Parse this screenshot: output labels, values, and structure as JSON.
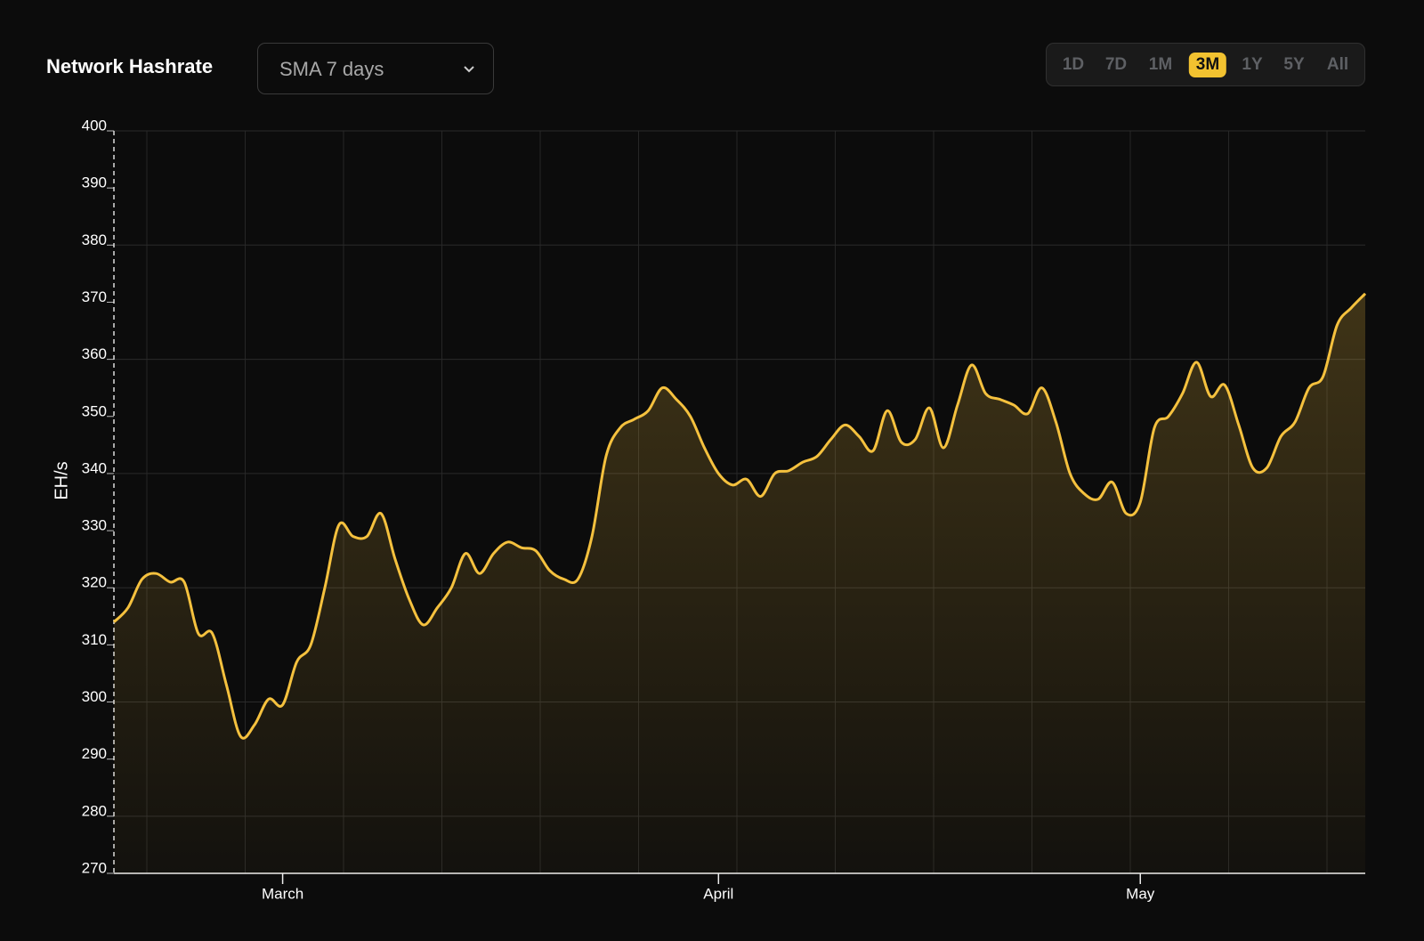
{
  "chart_data": {
    "type": "line",
    "title": "Network Hashrate",
    "y_label": "EH/s",
    "categories": [
      null,
      null,
      null,
      null,
      null,
      null,
      null,
      null,
      null,
      null,
      null,
      null,
      "March",
      null,
      null,
      null,
      null,
      null,
      null,
      null,
      null,
      null,
      null,
      null,
      null,
      null,
      null,
      null,
      null,
      null,
      null,
      null,
      null,
      null,
      null,
      null,
      null,
      null,
      null,
      null,
      null,
      null,
      null,
      "April",
      null,
      null,
      null,
      null,
      null,
      null,
      null,
      null,
      null,
      null,
      null,
      null,
      null,
      null,
      null,
      null,
      null,
      null,
      null,
      null,
      null,
      null,
      null,
      null,
      null,
      null,
      null,
      null,
      null,
      "May",
      null,
      null,
      null,
      null,
      null,
      null,
      null,
      null,
      null,
      null,
      null,
      null,
      null,
      null,
      null,
      null
    ],
    "values": [
      314,
      316.5,
      321.5,
      322.5,
      321,
      321,
      312,
      312,
      303,
      294,
      296,
      300.5,
      299.5,
      307,
      310,
      320,
      331,
      329,
      329,
      333,
      325,
      318,
      313.5,
      316.5,
      320,
      326,
      322.5,
      326,
      328,
      327,
      326.5,
      323,
      321.5,
      321.5,
      329,
      343,
      348,
      349.5,
      351,
      355,
      353,
      350,
      344.5,
      340,
      338,
      339,
      336,
      340,
      340.5,
      342,
      343,
      346,
      348.5,
      346.5,
      344,
      351,
      345.5,
      346,
      351.5,
      344.5,
      352,
      359,
      354,
      353,
      352,
      350.5,
      355,
      349,
      340,
      336.5,
      335.5,
      338.5,
      333,
      335,
      348,
      350,
      354,
      359.5,
      353.5,
      355.5,
      348.5,
      341,
      341,
      346.5,
      349,
      355,
      357,
      366,
      369,
      371.5
    ],
    "color": "#f5c13e",
    "ylim": [
      270,
      400
    ],
    "yticks": [
      270,
      280,
      290,
      300,
      310,
      320,
      330,
      340,
      350,
      360,
      370,
      380,
      390,
      400
    ],
    "grid": true
  },
  "controls": {
    "average": "SMA 7 days",
    "ranges": [
      "1D",
      "7D",
      "1M",
      "3M",
      "1Y",
      "5Y",
      "All"
    ],
    "selected": "3M"
  }
}
